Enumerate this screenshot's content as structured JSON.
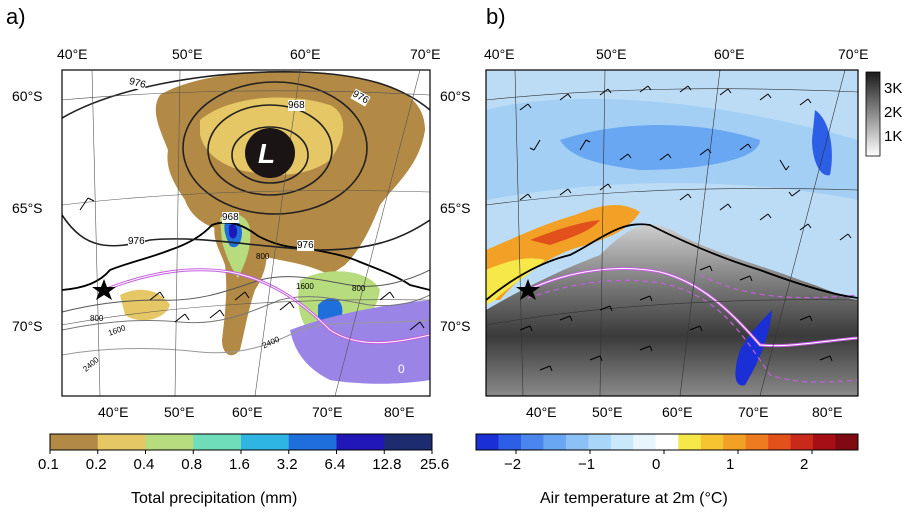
{
  "panels": [
    {
      "letter": "a)",
      "top_lon_labels": [
        "40°E",
        "50°E",
        "60°E",
        "70°E"
      ],
      "bottom_lon_labels": [
        "40°E",
        "50°E",
        "60°E",
        "70°E",
        "80°E"
      ],
      "lat_labels": [
        "60°S",
        "65°S",
        "70°S"
      ],
      "pressure_contours": [
        "976",
        "968",
        "968",
        "976",
        "976",
        "976"
      ],
      "height_contours": [
        "800",
        "1600",
        "2400",
        "800",
        "1600",
        "800",
        "2400",
        "0"
      ],
      "low_symbol": "L",
      "colorbar": {
        "ticks": [
          "0.1",
          "0.2",
          "0.4",
          "0.8",
          "1.6",
          "3.2",
          "6.4",
          "12.8",
          "25.6"
        ],
        "colors": [
          "#b38a45",
          "#e6c766",
          "#b7dc7e",
          "#6fddb9",
          "#2fb5e3",
          "#1e6edb",
          "#2116b8",
          "#1d2c6e"
        ],
        "title": "Total precipitation (mm)"
      }
    },
    {
      "letter": "b)",
      "top_lon_labels": [
        "40°E",
        "50°E",
        "60°E",
        "70°E"
      ],
      "bottom_lon_labels": [
        "40°E",
        "50°E",
        "60°E",
        "70°E",
        "80°E"
      ],
      "lat_labels": [
        "60°S",
        "65°S",
        "70°S"
      ],
      "side_colorbar": {
        "ticks": [
          "3K",
          "2K",
          "1K"
        ]
      },
      "colorbar": {
        "ticks": [
          "−2",
          "−1",
          "0",
          "1",
          "2"
        ],
        "colors": [
          "#1a2fd6",
          "#2c5ee6",
          "#4a86ee",
          "#6aa7f2",
          "#8cc1f5",
          "#a9d6f8",
          "#c9e8fa",
          "#e8f5fd",
          "#ffffff",
          "#f7e84a",
          "#f6c431",
          "#f3a126",
          "#ee7b20",
          "#e2511c",
          "#c9291a",
          "#a50f15",
          "#7f0a12"
        ],
        "title": "Air temperature at 2m (°C)"
      }
    }
  ]
}
